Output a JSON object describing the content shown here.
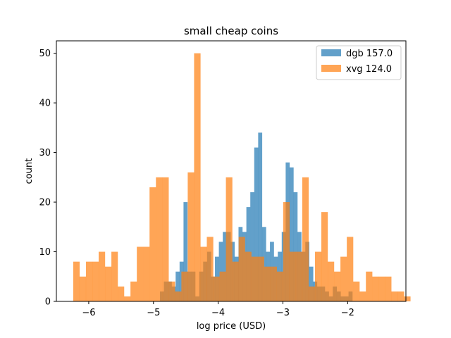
{
  "chart_data": {
    "type": "bar",
    "title": "small cheap coins",
    "xlabel": "log price (USD)",
    "ylabel": "count",
    "xlim": [
      -6.5,
      -1.1
    ],
    "ylim": [
      0,
      52.5
    ],
    "xticks": [
      -6,
      -5,
      -4,
      -3,
      -2
    ],
    "xtick_labels": [
      "−6",
      "−5",
      "−4",
      "−3",
      "−2"
    ],
    "yticks": [
      0,
      10,
      20,
      30,
      40,
      50
    ],
    "ytick_labels": [
      "0",
      "10",
      "20",
      "30",
      "40",
      "50"
    ],
    "legend_position": "top-right",
    "grid": false,
    "series": [
      {
        "name": "dgb 157.0",
        "color": "#1f77b4",
        "opacity": 0.7,
        "bin_start": -4.9,
        "bin_width": 0.0607,
        "values": [
          2,
          4,
          4,
          3,
          6,
          8,
          20,
          6,
          6,
          1,
          6,
          8,
          10,
          5,
          9,
          12,
          14,
          14,
          12,
          9,
          15,
          14,
          19,
          22,
          31,
          34,
          15,
          10,
          12,
          9,
          10,
          14,
          28,
          27,
          22,
          14,
          10,
          12,
          7,
          4,
          3,
          3,
          2,
          1,
          3,
          2,
          1,
          1,
          2
        ]
      },
      {
        "name": "xvg 124.0",
        "color": "#ff7f0e",
        "opacity": 0.7,
        "bin_start": -6.24,
        "bin_width": 0.0983,
        "values": [
          8,
          5,
          8,
          8,
          10,
          7,
          10,
          3,
          1,
          4,
          11,
          11,
          23,
          25,
          25,
          4,
          2,
          6,
          26,
          50,
          11,
          13,
          5,
          6,
          25,
          8,
          13,
          10,
          9,
          9,
          7,
          7,
          6,
          20,
          10,
          10,
          25,
          3,
          10,
          18,
          8,
          6,
          9,
          13,
          4,
          2,
          6,
          5,
          5,
          5,
          2,
          2,
          1
        ]
      }
    ]
  }
}
